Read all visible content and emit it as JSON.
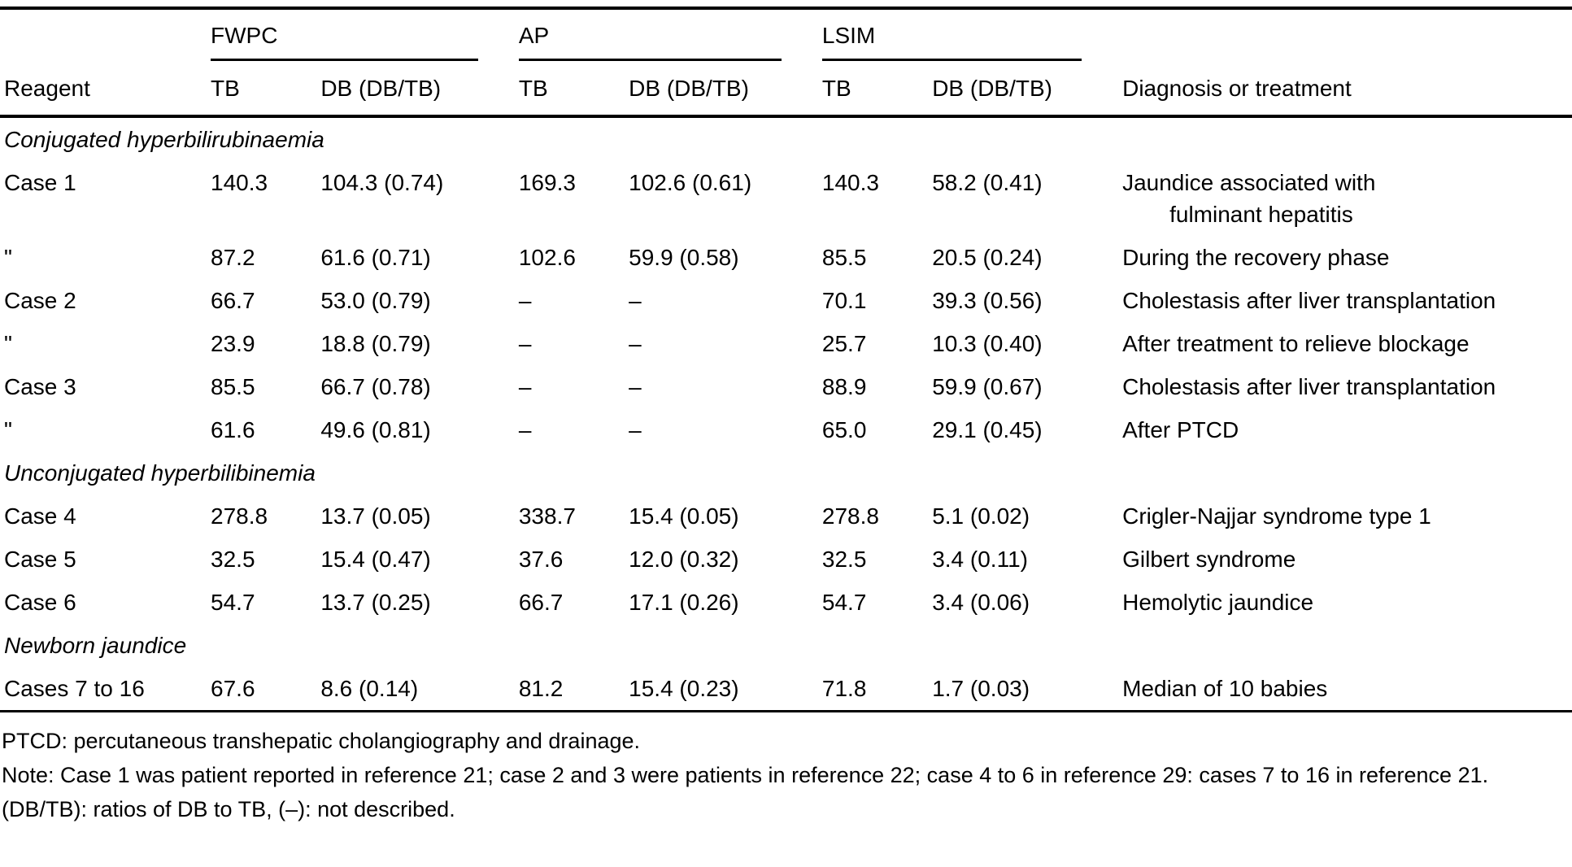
{
  "table": {
    "groups": [
      {
        "label": "FWPC"
      },
      {
        "label": "AP"
      },
      {
        "label": "LSIM"
      }
    ],
    "columns": {
      "reagent": "Reagent",
      "tb": "TB",
      "db": "DB (DB/TB)",
      "diagnosis": "Diagnosis or treatment"
    },
    "sections": [
      {
        "title": "Conjugated hyperbilirubinaemia",
        "rows": [
          {
            "reagent": "Case 1",
            "fwpc_tb": "140.3",
            "fwpc_db": "104.3 (0.74)",
            "ap_tb": "169.3",
            "ap_db": "102.6 (0.61)",
            "lsim_tb": "140.3",
            "lsim_db": "58.2 (0.41)",
            "diagnosis": "Jaundice associated with",
            "diagnosis_line2": "fulminant hepatitis"
          },
          {
            "reagent": "\"",
            "fwpc_tb": "87.2",
            "fwpc_db": "61.6 (0.71)",
            "ap_tb": "102.6",
            "ap_db": "59.9 (0.58)",
            "lsim_tb": "85.5",
            "lsim_db": "20.5 (0.24)",
            "diagnosis": "During the recovery phase"
          },
          {
            "reagent": "Case 2",
            "fwpc_tb": "66.7",
            "fwpc_db": "53.0 (0.79)",
            "ap_tb": "–",
            "ap_db": "–",
            "lsim_tb": "70.1",
            "lsim_db": "39.3 (0.56)",
            "diagnosis": "Cholestasis after liver transplantation"
          },
          {
            "reagent": "\"",
            "fwpc_tb": "23.9",
            "fwpc_db": "18.8 (0.79)",
            "ap_tb": "–",
            "ap_db": "–",
            "lsim_tb": "25.7",
            "lsim_db": "10.3 (0.40)",
            "diagnosis": "After treatment to relieve blockage"
          },
          {
            "reagent": "Case 3",
            "fwpc_tb": "85.5",
            "fwpc_db": "66.7 (0.78)",
            "ap_tb": "–",
            "ap_db": "–",
            "lsim_tb": "88.9",
            "lsim_db": "59.9 (0.67)",
            "diagnosis": "Cholestasis after liver transplantation"
          },
          {
            "reagent": "\"",
            "fwpc_tb": "61.6",
            "fwpc_db": "49.6 (0.81)",
            "ap_tb": "–",
            "ap_db": "–",
            "lsim_tb": "65.0",
            "lsim_db": "29.1 (0.45)",
            "diagnosis": "After PTCD"
          }
        ]
      },
      {
        "title": "Unconjugated hyperbilibinemia",
        "rows": [
          {
            "reagent": "Case 4",
            "fwpc_tb": "278.8",
            "fwpc_db": "13.7 (0.05)",
            "ap_tb": "338.7",
            "ap_db": "15.4 (0.05)",
            "lsim_tb": "278.8",
            "lsim_db": "5.1 (0.02)",
            "diagnosis": "Crigler-Najjar syndrome type 1"
          },
          {
            "reagent": "Case 5",
            "fwpc_tb": "32.5",
            "fwpc_db": "15.4 (0.47)",
            "ap_tb": "37.6",
            "ap_db": "12.0 (0.32)",
            "lsim_tb": "32.5",
            "lsim_db": "3.4 (0.11)",
            "diagnosis": "Gilbert syndrome"
          },
          {
            "reagent": "Case 6",
            "fwpc_tb": "54.7",
            "fwpc_db": "13.7 (0.25)",
            "ap_tb": "66.7",
            "ap_db": "17.1 (0.26)",
            "lsim_tb": "54.7",
            "lsim_db": "3.4 (0.06)",
            "diagnosis": "Hemolytic jaundice"
          }
        ]
      },
      {
        "title": "Newborn jaundice",
        "rows": [
          {
            "reagent": "Cases 7 to 16",
            "fwpc_tb": "67.6",
            "fwpc_db": "8.6 (0.14)",
            "ap_tb": "81.2",
            "ap_db": "15.4 (0.23)",
            "lsim_tb": "71.8",
            "lsim_db": "1.7 (0.03)",
            "diagnosis": "Median of 10 babies"
          }
        ]
      }
    ]
  },
  "footnotes": [
    "PTCD: percutaneous transhepatic cholangiography and drainage.",
    "Note: Case 1 was patient reported in reference 21; case 2 and 3 were patients in reference 22; case 4 to 6 in reference 29: cases 7 to 16 in reference 21.",
    "(DB/TB): ratios of DB to TB, (–): not described."
  ]
}
